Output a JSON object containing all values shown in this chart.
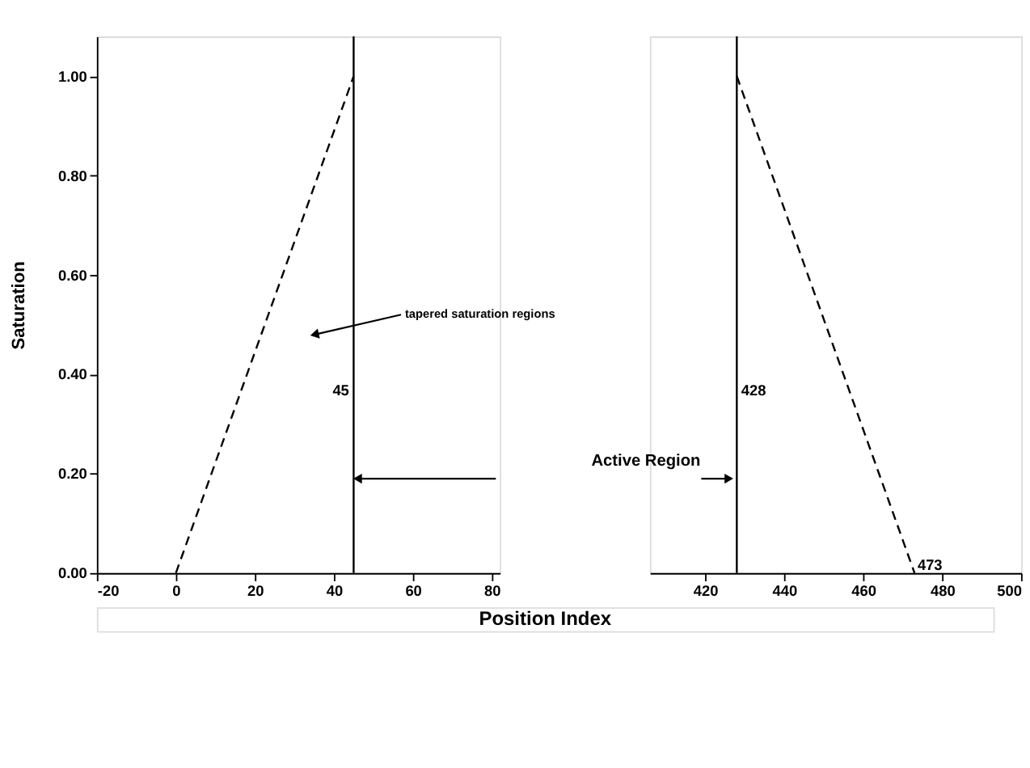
{
  "chart_data": [
    {
      "type": "line",
      "xlabel": "Position Index",
      "ylabel": "Saturation",
      "xlim": [
        -20,
        82
      ],
      "xticks": [
        -20,
        0,
        20,
        40,
        60,
        80
      ],
      "ylim": [
        0,
        1.08
      ],
      "yticks": [
        {
          "value": 0,
          "label": "0.00"
        },
        {
          "value": 0.2,
          "label": "0.20"
        },
        {
          "value": 0.4,
          "label": "0.40"
        },
        {
          "value": 0.6,
          "label": "0.60"
        },
        {
          "value": 0.8,
          "label": "0.80"
        },
        {
          "value": 1,
          "label": "1.00"
        }
      ],
      "grid": false,
      "line_style": "dashed",
      "series": [
        {
          "color": "#000000",
          "x": [
            0,
            45
          ],
          "values": [
            0,
            1
          ]
        }
      ],
      "ref_lines": [
        {
          "axis": "x",
          "value": 45,
          "label": "45",
          "color": "#000000",
          "line_style": "solid"
        }
      ],
      "annotations": [
        "tapered saturation regions"
      ]
    },
    {
      "type": "line",
      "xlim": [
        406,
        500
      ],
      "xticks": [
        420,
        440,
        460,
        480,
        500
      ],
      "ylim": [
        0,
        1.08
      ],
      "tick_labels": "x",
      "grid": false,
      "line_style": "dashed",
      "series": [
        {
          "color": "#000000",
          "x": [
            428,
            473
          ],
          "values": [
            1,
            0
          ]
        }
      ],
      "ref_lines": [
        {
          "axis": "x",
          "value": 428,
          "label": "428",
          "color": "#000000",
          "line_style": "solid"
        }
      ],
      "annotations": [
        {
          "text": "Active Region",
          "x": 428,
          "y": 0.19
        },
        {
          "text": "473",
          "x": 473,
          "y": 0
        }
      ]
    }
  ]
}
